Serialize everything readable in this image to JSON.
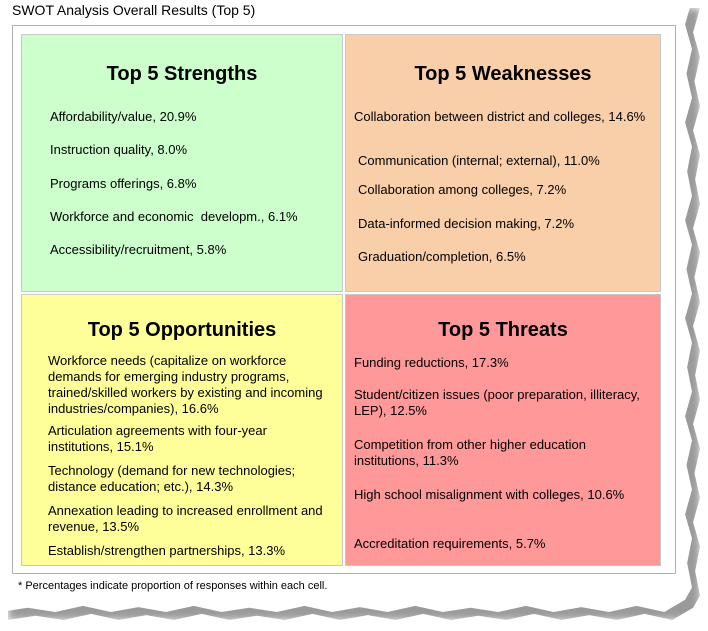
{
  "title": "SWOT Analysis Overall Results (Top 5)",
  "strengths": {
    "heading": "Top 5 Strengths",
    "items": [
      "Affordability/value, 20.9%",
      "Instruction quality, 8.0%",
      "Programs offerings, 6.8%",
      "Workforce and economic  developm., 6.1%",
      "Accessibility/recruitment, 5.8%"
    ]
  },
  "weaknesses": {
    "heading": "Top 5 Weaknesses",
    "items": [
      "Collaboration between district and colleges, 14.6%",
      "Communication (internal; external), 11.0%",
      "Collaboration among colleges, 7.2%",
      "Data-informed decision making, 7.2%",
      "Graduation/completion, 6.5%"
    ]
  },
  "opportunities": {
    "heading": "Top 5 Opportunities",
    "items": [
      "Workforce needs (capitalize on workforce demands for emerging industry programs, trained/skilled workers by existing and incoming industries/companies), 16.6%",
      "Articulation agreements with four-year institutions, 15.1%",
      "Technology (demand for new technologies; distance education; etc.), 14.3%",
      "Annexation leading to increased enrollment and revenue, 13.5%",
      "Establish/strengthen partnerships, 13.3%"
    ]
  },
  "threats": {
    "heading": "Top 5 Threats",
    "items": [
      "Funding reductions, 17.3%",
      "Student/citizen issues (poor preparation, illiteracy, LEP), 12.5%",
      "Competition from other higher education institutions, 11.3%",
      "High school misalignment with colleges, 10.6%",
      "Accreditation requirements, 5.7%"
    ]
  },
  "footnote": "* Percentages indicate proportion of responses within each cell.",
  "colors": {
    "strengths": "#ccffcc",
    "weaknesses": "#f9cfaa",
    "opportunities": "#ffff99",
    "threats": "#ff9999"
  }
}
